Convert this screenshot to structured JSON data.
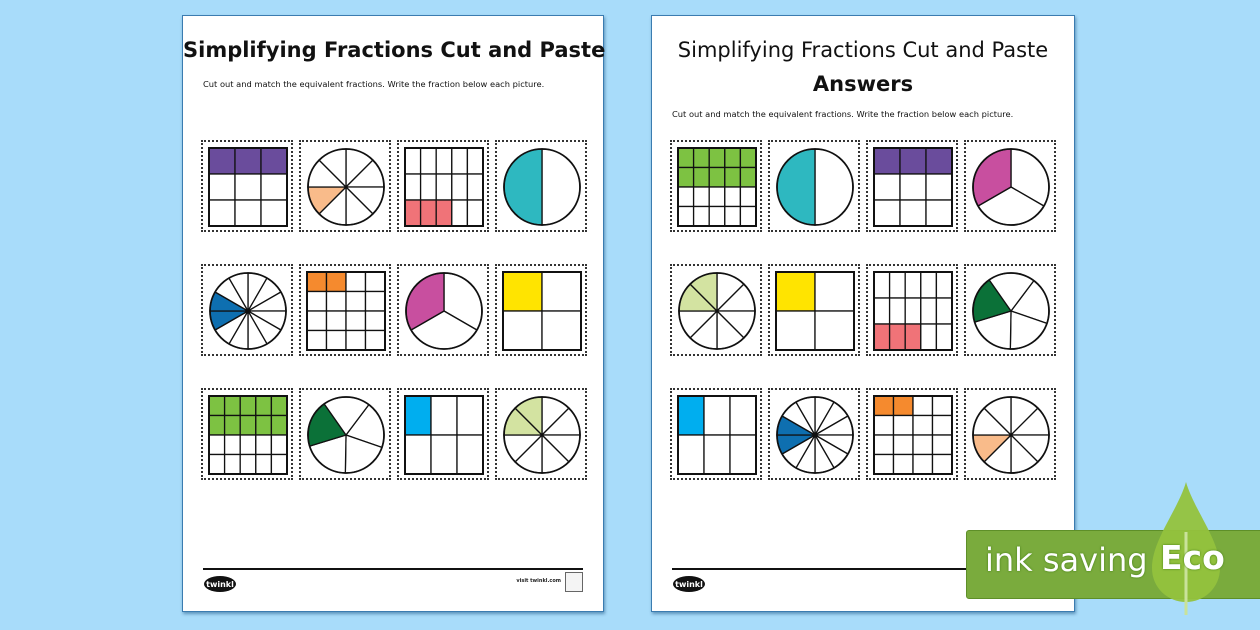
{
  "background_color": "#a8dcfa",
  "worksheet": {
    "title": "Simplifying Fractions Cut and Paste",
    "instruction": "Cut out and match the equivalent fractions. Write the fraction below each picture.",
    "footer": {
      "logo_text": "twinkl",
      "visit_text": "visit twinkl.com"
    },
    "cards": [
      {
        "type": "grid",
        "rows": 3,
        "cols": 3,
        "shaded": [
          0,
          1,
          2
        ],
        "color": "#6a4c9c"
      },
      {
        "type": "circle",
        "slices": 8,
        "offset": 0,
        "shaded": [
          5
        ],
        "color": "#f9bb8a"
      },
      {
        "type": "grid",
        "rows": 3,
        "cols": 5,
        "shaded": [
          10,
          11,
          12
        ],
        "color": "#f07378"
      },
      {
        "type": "circle",
        "slices": 2,
        "offset": 0,
        "shaded": [
          1
        ],
        "color": "#2eb8c0"
      },
      {
        "type": "circle",
        "slices": 12,
        "offset": 0,
        "shaded": [
          8,
          9
        ],
        "color": "#0e6fb0"
      },
      {
        "type": "grid",
        "rows": 4,
        "cols": 4,
        "shaded": [
          0,
          1
        ],
        "color": "#f58a2e"
      },
      {
        "type": "circle",
        "slices": 3,
        "offset": 0,
        "shaded": [
          2
        ],
        "color": "#c84f9f"
      },
      {
        "type": "grid",
        "rows": 2,
        "cols": 2,
        "shaded": [
          0
        ],
        "color": "#ffe400"
      },
      {
        "type": "grid",
        "rows": 4,
        "cols": 5,
        "shaded": [
          0,
          1,
          2,
          3,
          4,
          5,
          6,
          7,
          8,
          9
        ],
        "color": "#7dc242"
      },
      {
        "type": "circle",
        "slices": 5,
        "offset": 37,
        "shaded": [
          3
        ],
        "color": "#0b7138"
      },
      {
        "type": "grid",
        "rows": 2,
        "cols": 3,
        "shaded": [
          0
        ],
        "color": "#00aeef"
      },
      {
        "type": "circle",
        "slices": 8,
        "offset": 0,
        "shaded": [
          6,
          7
        ],
        "color": "#d3e3a1"
      }
    ]
  },
  "answers": {
    "title": "Simplifying Fractions Cut and Paste",
    "subtitle": "Answers",
    "instruction": "Cut out and match the equivalent fractions. Write the fraction below each picture.",
    "footer": {
      "logo_text": "twinkl"
    },
    "order": [
      8,
      3,
      0,
      6,
      11,
      7,
      2,
      9,
      10,
      4,
      5,
      1
    ]
  },
  "badge": {
    "label": "ink saving",
    "eco": "Eco",
    "band_color": "#7aab3d",
    "leaf_color": "#93c23d"
  }
}
